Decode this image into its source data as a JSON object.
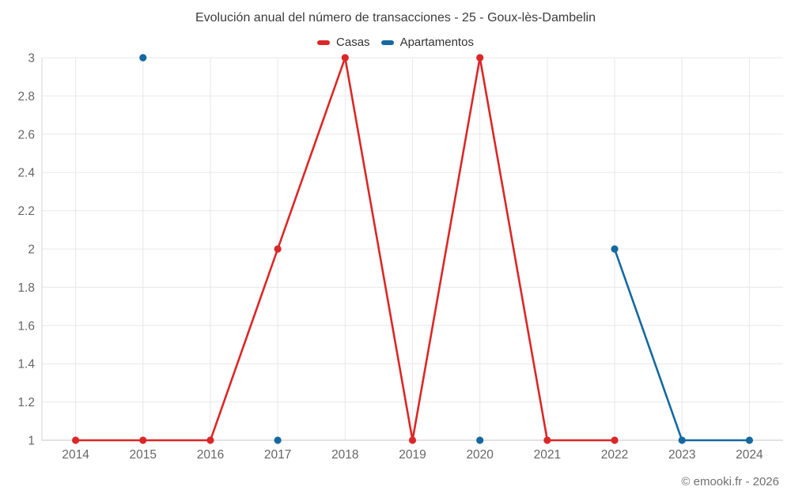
{
  "title": "Evolución anual del número de transacciones - 25 - Goux-lès-Dambelin",
  "footer": {
    "copyright": "© emooki.fr - 2026"
  },
  "chart_data": {
    "type": "line",
    "title": "Evolución anual del número de transacciones - 25 - Goux-lès-Dambelin",
    "categories": [
      "2014",
      "2015",
      "2016",
      "2017",
      "2018",
      "2019",
      "2020",
      "2021",
      "2022",
      "2023",
      "2024"
    ],
    "series": [
      {
        "name": "Casas",
        "color": "#db2727",
        "values": [
          1,
          1,
          1,
          2,
          3,
          1,
          3,
          1,
          1,
          null,
          null
        ]
      },
      {
        "name": "Apartamentos",
        "color": "#15699f",
        "values": [
          null,
          3,
          null,
          1,
          null,
          null,
          1,
          null,
          2,
          1,
          1
        ]
      }
    ],
    "xlabel": "",
    "ylabel": "",
    "ylim": [
      1,
      3
    ],
    "y_ticks": [
      "1",
      "1.2",
      "1.4",
      "1.6",
      "1.8",
      "2",
      "2.2",
      "2.4",
      "2.6",
      "2.8",
      "3"
    ],
    "grid": true,
    "legend_position": "top"
  }
}
